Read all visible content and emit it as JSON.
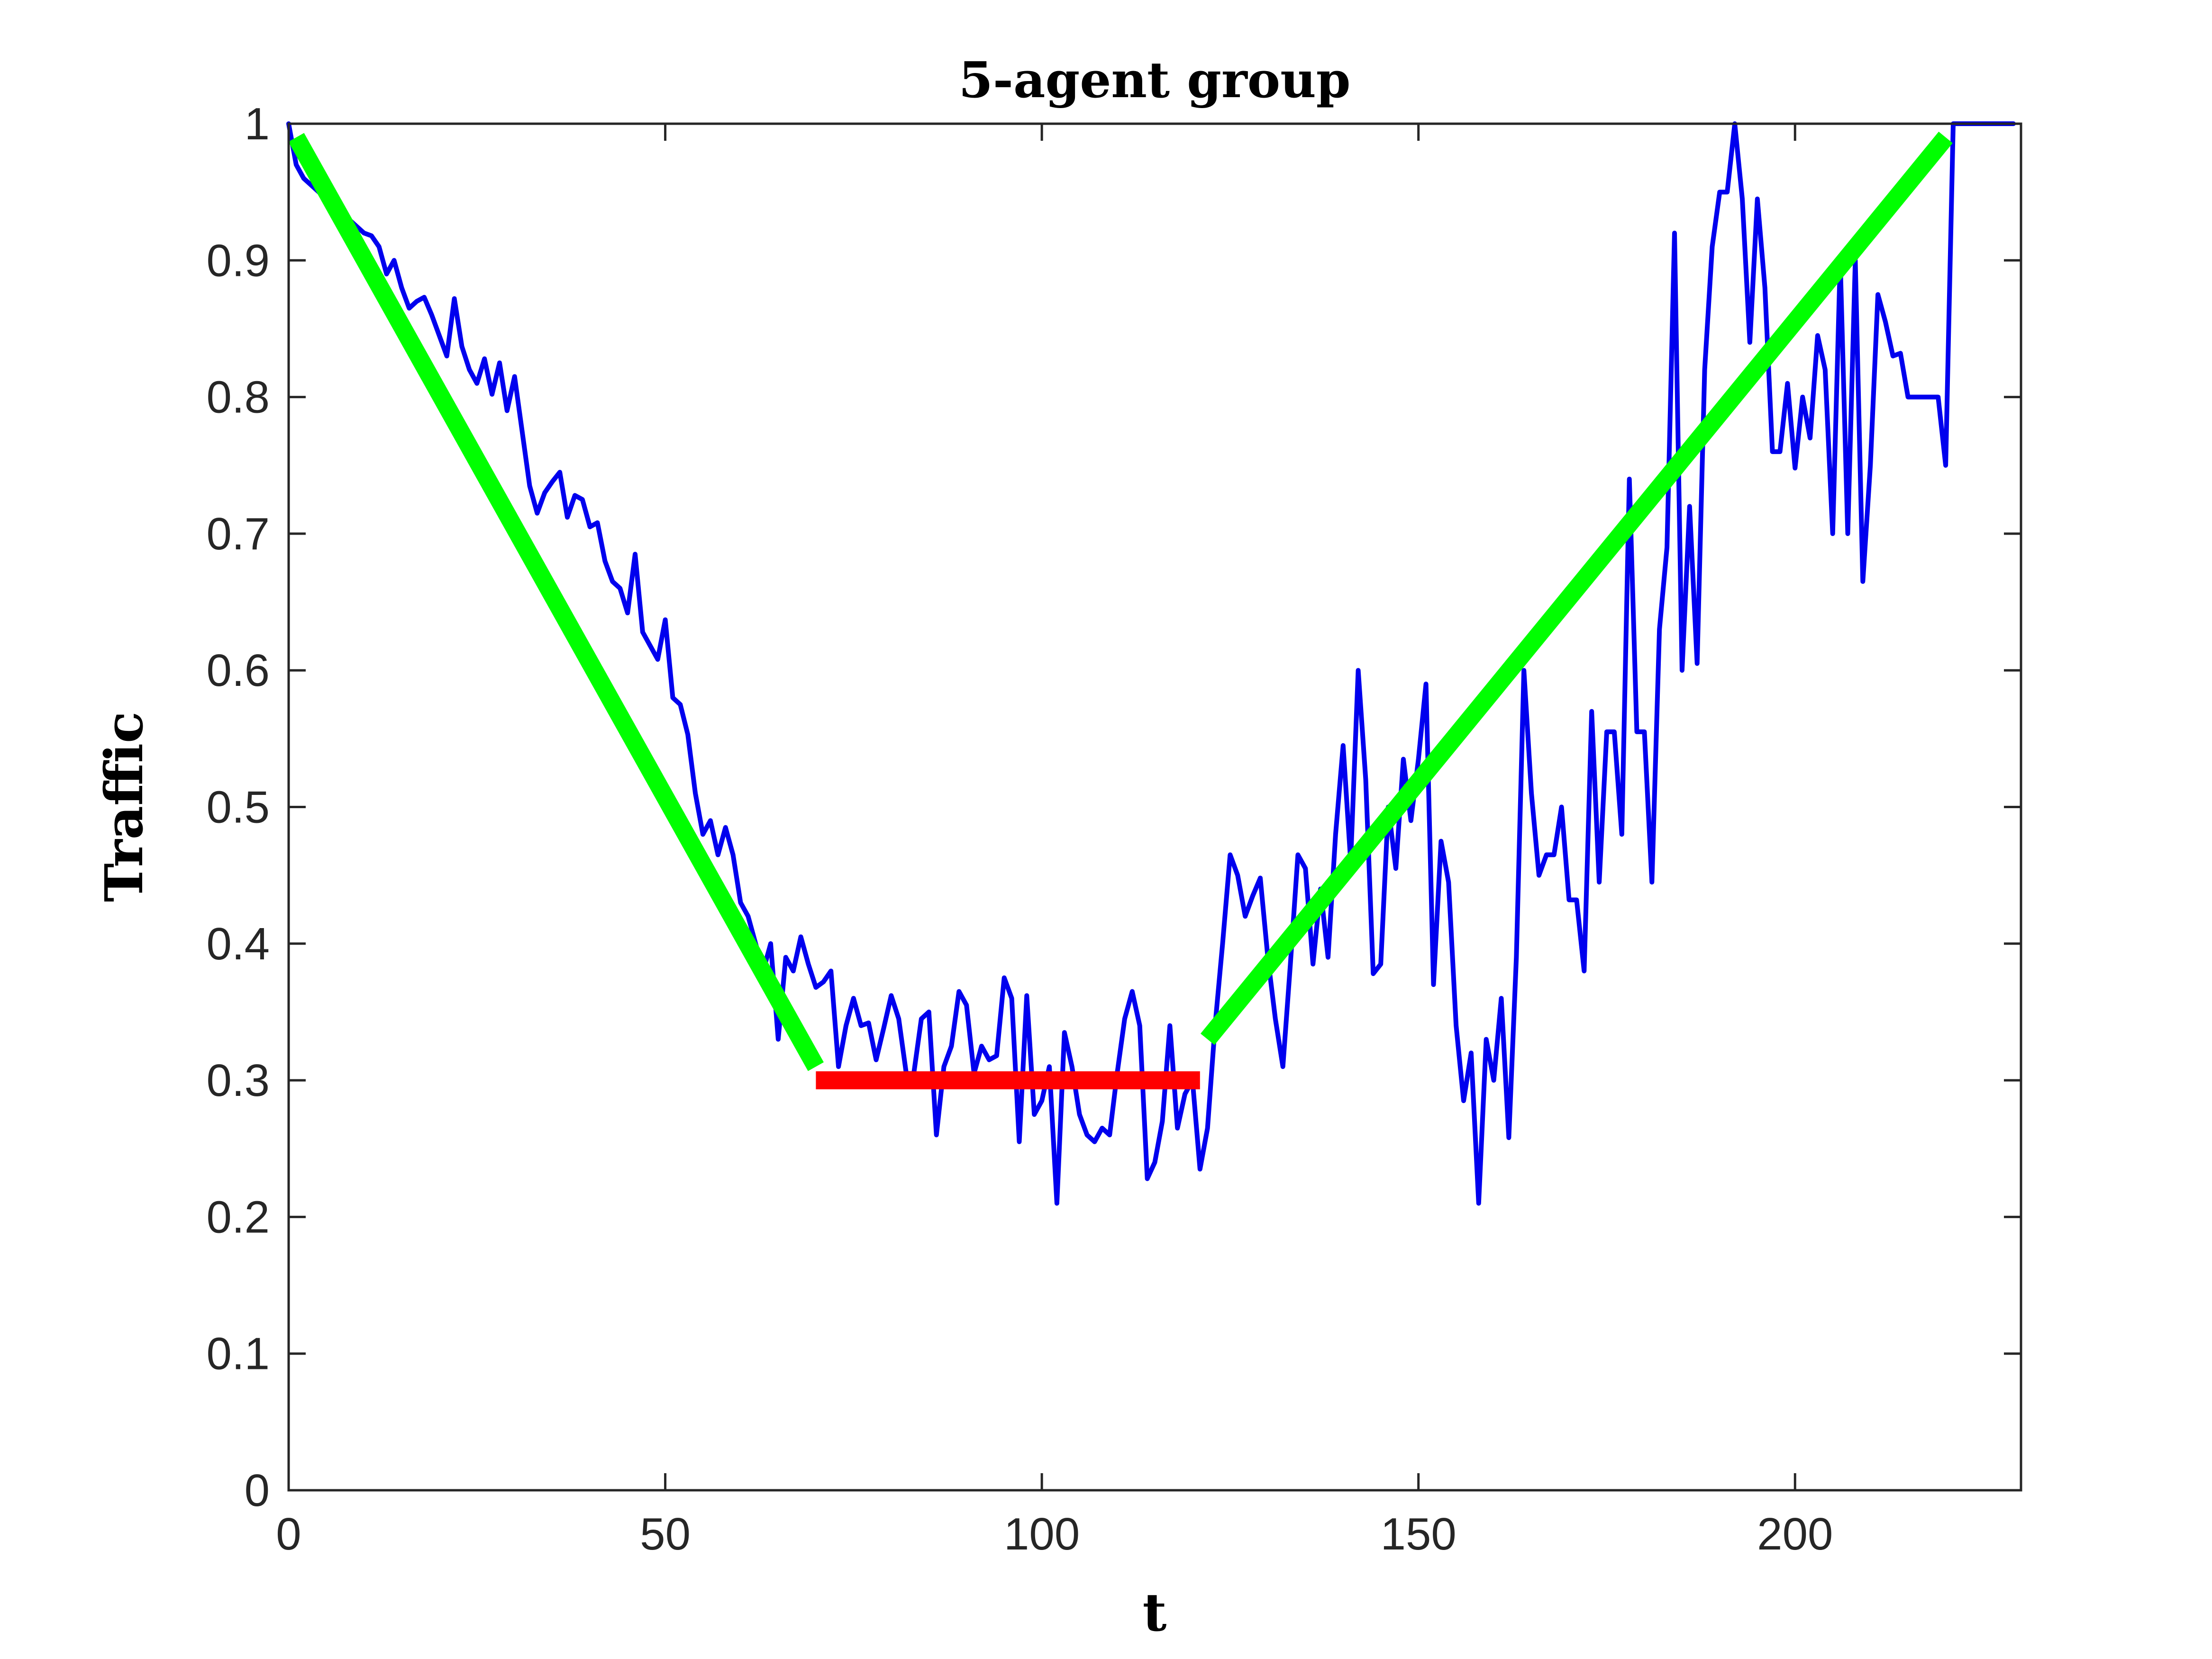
{
  "chart_data": {
    "type": "line",
    "title": "5-agent group",
    "xlabel": "t",
    "ylabel": "Traffic",
    "xlim": [
      0,
      230
    ],
    "ylim": [
      0,
      1
    ],
    "xticks": [
      0,
      50,
      100,
      150,
      200
    ],
    "yticks": [
      0,
      0.1,
      0.2,
      0.3,
      0.4,
      0.5,
      0.6,
      0.7,
      0.8,
      0.9,
      1
    ],
    "grid": false,
    "legend": "none",
    "series": [
      {
        "color": "#0000ee",
        "x": [
          0,
          1,
          2,
          3,
          4,
          5,
          6,
          7,
          8,
          9,
          10,
          11,
          12,
          13,
          14,
          15,
          16,
          17,
          18,
          19,
          20,
          21,
          22,
          23,
          24,
          25,
          26,
          27,
          28,
          29,
          30,
          31,
          32,
          33,
          34,
          35,
          36,
          37,
          38,
          39,
          40,
          41,
          42,
          43,
          44,
          45,
          46,
          47,
          48,
          49,
          50,
          51,
          52,
          53,
          54,
          55,
          56,
          57,
          58,
          59,
          60,
          61,
          62,
          63,
          64,
          65,
          66,
          67,
          68,
          69,
          70,
          71,
          72,
          73,
          74,
          75,
          76,
          77,
          78,
          79,
          80,
          81,
          82,
          83,
          84,
          85,
          86,
          87,
          88,
          89,
          90,
          91,
          92,
          93,
          94,
          95,
          96,
          97,
          98,
          99,
          100,
          101,
          102,
          103,
          104,
          105,
          106,
          107,
          108,
          109,
          110,
          111,
          112,
          113,
          114,
          115,
          116,
          117,
          118,
          119,
          120,
          121,
          122,
          123,
          124,
          125,
          126,
          127,
          128,
          129,
          130,
          131,
          132,
          133,
          134,
          135,
          136,
          137,
          138,
          139,
          140,
          141,
          142,
          143,
          144,
          145,
          146,
          147,
          148,
          149,
          150,
          151,
          152,
          153,
          154,
          155,
          156,
          157,
          158,
          159,
          160,
          161,
          162,
          163,
          164,
          165,
          166,
          167,
          168,
          169,
          170,
          171,
          172,
          173,
          174,
          175,
          176,
          177,
          178,
          179,
          180,
          181,
          182,
          183,
          184,
          185,
          186,
          187,
          188,
          189,
          190,
          191,
          192,
          193,
          194,
          195,
          196,
          197,
          198,
          199,
          200,
          201,
          202,
          203,
          204,
          205,
          206,
          207,
          208,
          209,
          210,
          211,
          212,
          213,
          214,
          215,
          216,
          217,
          218,
          219,
          220,
          221,
          222,
          223,
          224,
          225,
          226,
          227,
          228,
          229
        ],
        "y": [
          1.0,
          0.97,
          0.96,
          0.955,
          0.95,
          0.945,
          0.94,
          0.935,
          0.93,
          0.925,
          0.92,
          0.918,
          0.91,
          0.89,
          0.9,
          0.88,
          0.865,
          0.87,
          0.873,
          0.86,
          0.845,
          0.83,
          0.872,
          0.837,
          0.82,
          0.81,
          0.828,
          0.802,
          0.825,
          0.79,
          0.815,
          0.775,
          0.735,
          0.715,
          0.73,
          0.738,
          0.745,
          0.712,
          0.728,
          0.725,
          0.705,
          0.708,
          0.68,
          0.665,
          0.66,
          0.642,
          0.685,
          0.628,
          0.618,
          0.608,
          0.637,
          0.58,
          0.575,
          0.553,
          0.51,
          0.48,
          0.49,
          0.465,
          0.485,
          0.465,
          0.43,
          0.42,
          0.4,
          0.38,
          0.4,
          0.33,
          0.39,
          0.38,
          0.405,
          0.385,
          0.368,
          0.372,
          0.38,
          0.31,
          0.34,
          0.36,
          0.34,
          0.342,
          0.315,
          0.338,
          0.362,
          0.345,
          0.305,
          0.305,
          0.345,
          0.35,
          0.26,
          0.31,
          0.325,
          0.365,
          0.355,
          0.305,
          0.325,
          0.315,
          0.318,
          0.375,
          0.36,
          0.255,
          0.362,
          0.275,
          0.285,
          0.31,
          0.21,
          0.335,
          0.31,
          0.275,
          0.26,
          0.255,
          0.265,
          0.26,
          0.305,
          0.345,
          0.365,
          0.34,
          0.228,
          0.24,
          0.27,
          0.34,
          0.265,
          0.29,
          0.3,
          0.235,
          0.265,
          0.34,
          0.4,
          0.465,
          0.45,
          0.42,
          0.435,
          0.448,
          0.39,
          0.345,
          0.31,
          0.385,
          0.465,
          0.455,
          0.385,
          0.44,
          0.39,
          0.48,
          0.545,
          0.46,
          0.6,
          0.52,
          0.378,
          0.385,
          0.5,
          0.455,
          0.535,
          0.49,
          0.535,
          0.59,
          0.37,
          0.475,
          0.445,
          0.34,
          0.285,
          0.32,
          0.21,
          0.33,
          0.3,
          0.36,
          0.258,
          0.39,
          0.6,
          0.51,
          0.45,
          0.465,
          0.465,
          0.5,
          0.432,
          0.432,
          0.38,
          0.57,
          0.445,
          0.555,
          0.555,
          0.48,
          0.74,
          0.555,
          0.555,
          0.445,
          0.63,
          0.69,
          0.92,
          0.6,
          0.72,
          0.605,
          0.82,
          0.91,
          0.95,
          0.95,
          1.0,
          0.945,
          0.84,
          0.945,
          0.88,
          0.76,
          0.76,
          0.81,
          0.748,
          0.8,
          0.77,
          0.845,
          0.82,
          0.7,
          0.9,
          0.7,
          0.9,
          0.665,
          0.75,
          0.875,
          0.855,
          0.83,
          0.832,
          0.8,
          0.8,
          0.8,
          0.8,
          0.8,
          0.75,
          1.0,
          1.0,
          1.0,
          1.0,
          1.0,
          1.0,
          1.0,
          1.0,
          1.0
        ]
      },
      {
        "color": "#00ff00",
        "x": [
          1,
          70
        ],
        "y": [
          0.99,
          0.31
        ]
      },
      {
        "color": "#ff0000",
        "x": [
          70,
          121
        ],
        "y": [
          0.3,
          0.3
        ]
      },
      {
        "color": "#00ff00",
        "x": [
          122,
          220
        ],
        "y": [
          0.33,
          0.99
        ]
      }
    ]
  }
}
